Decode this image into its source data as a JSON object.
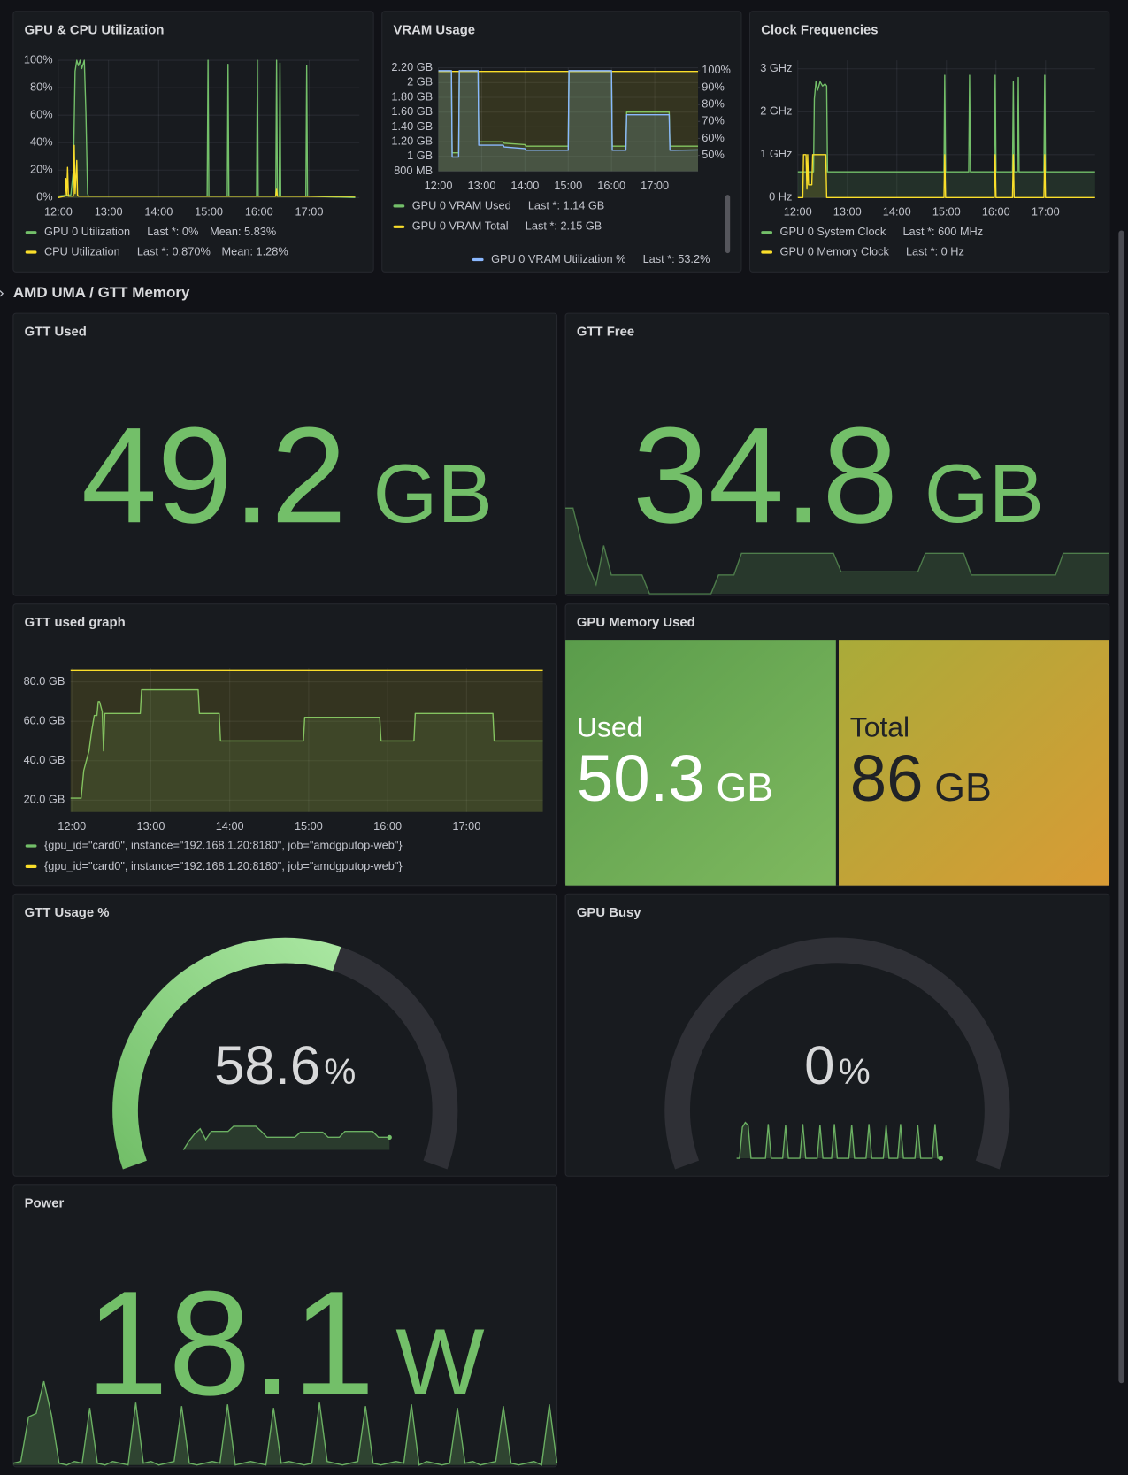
{
  "section": "AMD UMA / GTT Memory",
  "panels": [
    {
      "title": "GPU & CPU Utilization",
      "type": "line",
      "grid": true,
      "xlim": [
        "12:00",
        "18:00"
      ],
      "xticks": [
        "12:00",
        "13:00",
        "14:00",
        "15:00",
        "16:00",
        "17:00"
      ],
      "ylim": [
        0,
        100
      ],
      "yticks": [
        {
          "value": 0,
          "label": "0%"
        },
        {
          "value": 20,
          "label": "20%"
        },
        {
          "value": 40,
          "label": "40%"
        },
        {
          "value": 60,
          "label": "60%"
        },
        {
          "value": 80,
          "label": "80%"
        },
        {
          "value": 100,
          "label": "100%"
        }
      ],
      "series": [
        {
          "name": "GPU 0 Utilization",
          "color": "#73bf69",
          "legend_stats": [
            "Last *: 0%",
            "Mean: 5.83%"
          ],
          "x": [
            "12:00",
            "12:15",
            "12:18",
            "12:20",
            "12:22",
            "12:24",
            "12:26",
            "12:28",
            "12:31",
            "12:33",
            "12:35",
            "12:36",
            "13:00",
            "14:00",
            "14:58",
            "14:59",
            "15:00",
            "15:22",
            "15:23",
            "15:24",
            "15:57",
            "15:58",
            "15:59",
            "16:20",
            "16:21",
            "16:22",
            "16:24",
            "16:25",
            "16:26",
            "16:56",
            "16:57",
            "16:58",
            "17:55"
          ],
          "values": [
            1,
            2,
            20,
            92,
            100,
            96,
            100,
            94,
            100,
            62,
            3,
            1,
            1,
            1,
            1,
            100,
            1,
            1,
            97,
            1,
            1,
            100,
            1,
            1,
            100,
            1,
            1,
            98,
            1,
            1,
            96,
            1,
            0
          ]
        },
        {
          "name": "CPU Utilization",
          "color": "#fade2a",
          "legend_stats": [
            "Last *: 0.870%",
            "Mean: 1.28%"
          ],
          "x": [
            "12:00",
            "12:08",
            "12:09",
            "12:10",
            "12:11",
            "12:12",
            "12:18",
            "12:19",
            "12:20",
            "12:22",
            "12:23",
            "12:24",
            "12:30",
            "16:20",
            "16:21",
            "16:22",
            "17:55"
          ],
          "values": [
            0,
            1,
            14,
            2,
            22,
            1,
            1,
            38,
            3,
            27,
            2,
            1,
            1,
            1,
            6,
            1,
            0.87
          ]
        }
      ]
    },
    {
      "title": "VRAM Usage",
      "type": "line",
      "grid": true,
      "xlim": [
        "12:00",
        "18:00"
      ],
      "xticks": [
        "12:00",
        "13:00",
        "14:00",
        "15:00",
        "16:00",
        "17:00"
      ],
      "ylim": [
        0.8,
        2.2
      ],
      "yticks": [
        {
          "value": 0.8,
          "label": "800 MB"
        },
        {
          "value": 1,
          "label": "1 GB"
        },
        {
          "value": 1.2,
          "label": "1.20 GB"
        },
        {
          "value": 1.4,
          "label": "1.40 GB"
        },
        {
          "value": 1.6,
          "label": "1.60 GB"
        },
        {
          "value": 1.8,
          "label": "1.80 GB"
        },
        {
          "value": 2,
          "label": "2 GB"
        },
        {
          "value": 2.2,
          "label": "2.20 GB"
        }
      ],
      "y2lim": [
        40.6,
        101.7
      ],
      "y2ticks": [
        {
          "value": 50,
          "label": "50%"
        },
        {
          "value": 60,
          "label": "60%"
        },
        {
          "value": 70,
          "label": "70%"
        },
        {
          "value": 80,
          "label": "80%"
        },
        {
          "value": 90,
          "label": "90%"
        },
        {
          "value": 100,
          "label": "100%"
        }
      ],
      "series": [
        {
          "name": "GPU 0 VRAM Used",
          "color": "#73bf69",
          "legend_stats": [
            "Last *: 1.14 GB"
          ],
          "x": [
            "12:00",
            "12:18",
            "12:19",
            "12:28",
            "12:29",
            "12:55",
            "12:56",
            "13:30",
            "13:31",
            "14:00",
            "14:01",
            "15:00",
            "15:01",
            "16:00",
            "16:01",
            "16:20",
            "16:21",
            "17:20",
            "17:21",
            "18:00"
          ],
          "values": [
            2.15,
            2.15,
            1.05,
            1.05,
            2.15,
            2.15,
            1.2,
            1.2,
            1.18,
            1.16,
            1.14,
            1.14,
            2.15,
            2.15,
            1.14,
            1.14,
            1.6,
            1.6,
            1.14,
            1.14
          ]
        },
        {
          "name": "GPU 0 VRAM Total",
          "color": "#fade2a",
          "legend_stats": [
            "Last *: 2.15 GB"
          ],
          "x": [
            "12:00",
            "18:00"
          ],
          "values": [
            2.15,
            2.15
          ]
        },
        {
          "name": "GPU 0 VRAM Utilization %",
          "color": "#8ab8ff",
          "axis": "y2",
          "legend_stats": [
            "Last *: 53.2%"
          ],
          "x": [
            "12:00",
            "12:18",
            "12:19",
            "12:28",
            "12:29",
            "12:55",
            "12:56",
            "13:30",
            "13:31",
            "14:00",
            "14:01",
            "15:00",
            "15:01",
            "16:00",
            "16:01",
            "16:20",
            "16:21",
            "17:20",
            "17:21",
            "18:00"
          ],
          "values": [
            100,
            100,
            49,
            49,
            100,
            100,
            56,
            56,
            55,
            54,
            53,
            53,
            100,
            100,
            53,
            53,
            74,
            74,
            53,
            53.2
          ]
        }
      ]
    },
    {
      "title": "Clock Frequencies",
      "type": "line",
      "grid": true,
      "xlim": [
        "12:00",
        "18:00"
      ],
      "xticks": [
        "12:00",
        "13:00",
        "14:00",
        "15:00",
        "16:00",
        "17:00"
      ],
      "ylim": [
        0,
        3.2
      ],
      "yticks": [
        {
          "value": 0,
          "label": "0 Hz"
        },
        {
          "value": 1,
          "label": "1 GHz"
        },
        {
          "value": 2,
          "label": "2 GHz"
        },
        {
          "value": 3,
          "label": "3 GHz"
        }
      ],
      "series": [
        {
          "name": "GPU 0 System Clock",
          "color": "#73bf69",
          "legend_stats": [
            "Last *: 600 MHz"
          ],
          "x": [
            "12:00",
            "12:19",
            "12:20",
            "12:22",
            "12:24",
            "12:27",
            "12:30",
            "12:33",
            "12:35",
            "12:36",
            "14:57",
            "14:58",
            "14:59",
            "15:27",
            "15:28",
            "15:29",
            "15:58",
            "15:59",
            "16:00",
            "16:20",
            "16:21",
            "16:22",
            "16:26",
            "16:27",
            "16:28",
            "16:58",
            "16:59",
            "17:00",
            "18:00"
          ],
          "values": [
            0.6,
            0.6,
            2.3,
            2.7,
            2.5,
            2.7,
            2.6,
            2.65,
            2.6,
            0.6,
            0.6,
            2.85,
            0.6,
            0.6,
            2.85,
            0.6,
            0.6,
            2.85,
            0.6,
            0.6,
            2.7,
            0.6,
            0.6,
            2.8,
            0.6,
            0.6,
            2.85,
            0.6,
            0.6
          ]
        },
        {
          "name": "GPU 0 Memory Clock",
          "color": "#fade2a",
          "legend_stats": [
            "Last *: 0 Hz"
          ],
          "x": [
            "12:00",
            "12:06",
            "12:07",
            "12:10",
            "12:11",
            "12:12",
            "12:13",
            "12:17",
            "12:18",
            "12:34",
            "12:35",
            "14:57",
            "14:58",
            "14:59",
            "15:58",
            "15:59",
            "16:00",
            "16:20",
            "16:21",
            "16:22",
            "16:58",
            "16:59",
            "17:00",
            "18:00"
          ],
          "values": [
            0,
            0,
            1,
            1,
            0.2,
            1,
            0.3,
            0.3,
            1,
            1,
            0,
            0,
            1,
            0,
            0,
            1,
            0,
            0,
            1,
            0,
            0,
            1,
            0,
            0
          ]
        }
      ]
    },
    {
      "title": "GTT Used",
      "type": "stat",
      "value": 49.2,
      "unit": "GB",
      "color": "#73bf69"
    },
    {
      "title": "GTT Free",
      "type": "stat",
      "value": 34.8,
      "unit": "GB",
      "color": "#73bf69",
      "sparkline": [
        65,
        65,
        45,
        28,
        16,
        41,
        22,
        22,
        22,
        22,
        22,
        10,
        10,
        10,
        10,
        10,
        10,
        10,
        10,
        10,
        22,
        22,
        22,
        36,
        36,
        36,
        36,
        36,
        36,
        36,
        36,
        36,
        36,
        36,
        36,
        36,
        24,
        24,
        24,
        24,
        24,
        24,
        24,
        24,
        24,
        24,
        24,
        36,
        36,
        36,
        36,
        36,
        36,
        22,
        22,
        22,
        22,
        22,
        22,
        22,
        22,
        22,
        22,
        22,
        22,
        36,
        36,
        36,
        36,
        36,
        36,
        36
      ]
    },
    {
      "title": "GTT used graph",
      "type": "line",
      "grid": true,
      "xlim": [
        "11:59",
        "17:58"
      ],
      "xticks": [
        "12:00",
        "13:00",
        "14:00",
        "15:00",
        "16:00",
        "17:00"
      ],
      "ylim": [
        14,
        87
      ],
      "yticks": [
        {
          "value": 20,
          "label": "20.0 GB"
        },
        {
          "value": 40,
          "label": "40.0 GB"
        },
        {
          "value": 60,
          "label": "60.0 GB"
        },
        {
          "value": 80,
          "label": "80.0 GB"
        }
      ],
      "series": [
        {
          "name": "{gpu_id=\"card0\", instance=\"192.168.1.20:8180\", job=\"amdgputop-web\"}",
          "color": "#73bf69",
          "x": [
            "11:59",
            "12:07",
            "12:09",
            "12:13",
            "12:15",
            "12:17",
            "12:19",
            "12:20",
            "12:21",
            "12:23",
            "12:24",
            "12:25",
            "12:52",
            "12:53",
            "13:36",
            "13:37",
            "13:52",
            "13:53",
            "14:56",
            "14:57",
            "15:54",
            "15:55",
            "16:20",
            "16:21",
            "17:20",
            "17:21",
            "17:58"
          ],
          "values": [
            21,
            21,
            35,
            45,
            55,
            63,
            63,
            70,
            70,
            65,
            45,
            64,
            64,
            76,
            76,
            64,
            64,
            50,
            50,
            62,
            62,
            50,
            50,
            64,
            64,
            50,
            50
          ]
        },
        {
          "name": "{gpu_id=\"card0\", instance=\"192.168.1.20:8180\", job=\"amdgputop-web\"}",
          "color": "#fade2a",
          "x": [
            "11:59",
            "17:58"
          ],
          "values": [
            86,
            86
          ]
        }
      ]
    },
    {
      "title": "GPU Memory Used",
      "type": "bar-gauge",
      "items": [
        {
          "name": "Used",
          "value": 50.3,
          "unit": "GB"
        },
        {
          "name": "Total",
          "value": 86,
          "unit": "GB"
        }
      ]
    },
    {
      "title": "GTT Usage %",
      "type": "gauge",
      "value": 58.6,
      "unit": "%",
      "range": [
        0,
        100
      ],
      "color": "#73bf69",
      "sparkline": [
        24,
        48,
        67,
        81,
        52,
        74,
        74,
        74,
        74,
        88,
        88,
        88,
        88,
        88,
        74,
        58,
        58,
        58,
        58,
        58,
        58,
        72,
        72,
        72,
        72,
        72,
        58,
        58,
        58,
        74,
        74,
        74,
        74,
        74,
        74,
        58,
        58,
        58
      ]
    },
    {
      "title": "GPU Busy",
      "type": "gauge",
      "value": 0,
      "unit": "%",
      "range": [
        0,
        100
      ],
      "color": "#73bf69",
      "sparkline": [
        0,
        0,
        80,
        92,
        85,
        0,
        0,
        0,
        0,
        0,
        0,
        88,
        0,
        0,
        0,
        0,
        0,
        85,
        0,
        0,
        0,
        0,
        0,
        88,
        0,
        0,
        0,
        0,
        0,
        86,
        0,
        0,
        0,
        0,
        88,
        0,
        0,
        0,
        0,
        0,
        86,
        0,
        0,
        0,
        0,
        0,
        88,
        0,
        0,
        0,
        0,
        0,
        85,
        0,
        0,
        0,
        0,
        88,
        0,
        0,
        0,
        0,
        0,
        86,
        0,
        0,
        0,
        0,
        0,
        88,
        0,
        0
      ]
    },
    {
      "title": "Power",
      "type": "stat",
      "value": 18.1,
      "unit": "W",
      "color": "#73bf69",
      "sparkline": [
        14,
        15,
        40,
        42,
        60,
        41,
        14,
        13,
        15,
        14,
        45,
        14,
        13,
        15,
        14,
        13,
        48,
        14,
        15,
        13,
        14,
        15,
        46,
        14,
        13,
        14,
        15,
        14,
        47,
        13,
        14,
        15,
        14,
        13,
        45,
        14,
        15,
        14,
        13,
        14,
        48,
        15,
        14,
        13,
        14,
        15,
        46,
        14,
        13,
        14,
        15,
        14,
        47,
        13,
        15,
        14,
        13,
        14,
        45,
        14,
        15,
        13,
        14,
        15,
        46,
        14,
        13,
        14,
        15,
        13,
        47,
        14
      ]
    }
  ]
}
